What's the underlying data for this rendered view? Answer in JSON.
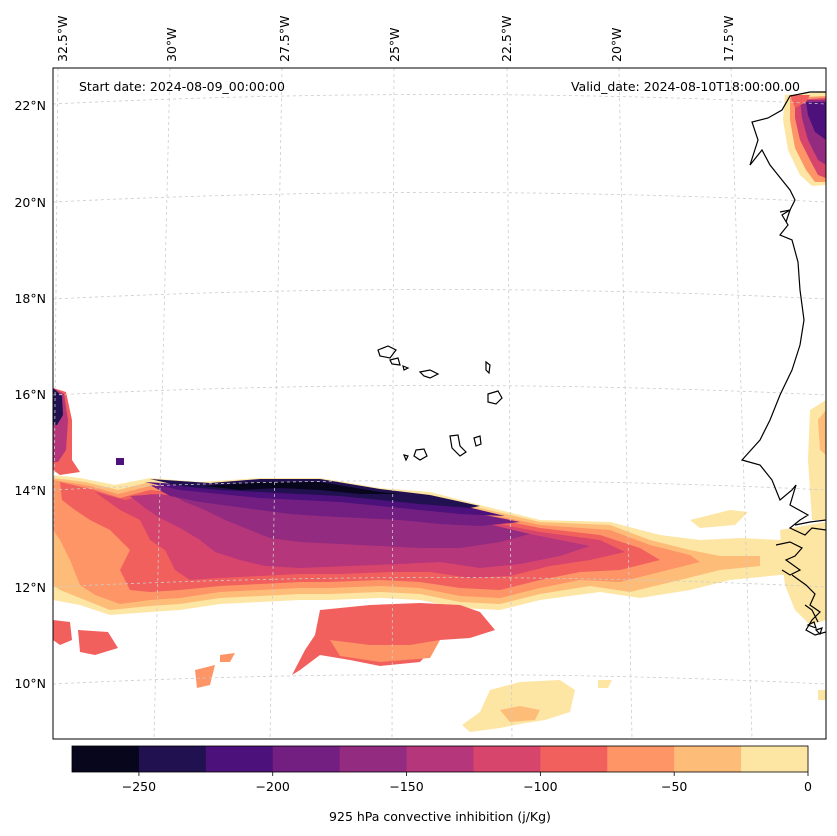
{
  "map": {
    "start_date": "Start date: 2024-08-09_00:00:00",
    "valid_date": "Valid_date: 2024-08-10T18:00:00.00",
    "lon_labels": [
      "32.5°W",
      "30°W",
      "27.5°W",
      "25°W",
      "22.5°W",
      "20°W",
      "17.5°W"
    ],
    "lat_labels": [
      "22°N",
      "20°N",
      "18°N",
      "16°N",
      "14°N",
      "12°N",
      "10°N"
    ],
    "gridlines": true,
    "region": "Eastern tropical Atlantic, Cabo Verde and West African coast"
  },
  "colorbar": {
    "label": "925 hPa convective inhibition (j/Kg)",
    "tick_labels": [
      "−250",
      "−200",
      "−150",
      "−100",
      "−50",
      "0"
    ],
    "levels": [
      -275,
      -250,
      -225,
      -200,
      -175,
      -150,
      -125,
      -100,
      -75,
      -50,
      -25,
      0
    ],
    "colors": [
      "#07061c",
      "#221150",
      "#4c117a",
      "#721f81",
      "#932b80",
      "#b5367a",
      "#d8456c",
      "#f1605d",
      "#fd9567",
      "#febc79",
      "#fde5a3"
    ]
  }
}
